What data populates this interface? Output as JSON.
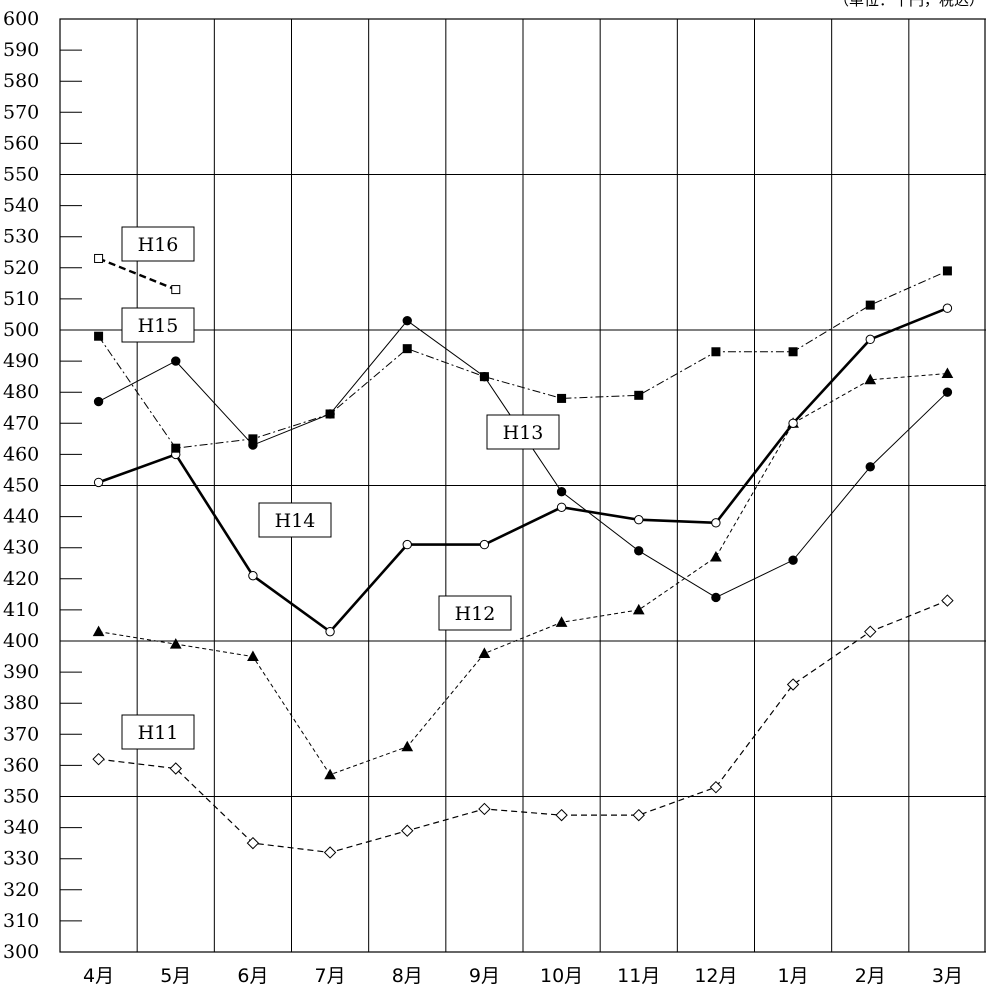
{
  "chart_data": {
    "type": "line",
    "unit_note": "（単位：千円，税込）",
    "categories": [
      "4月",
      "5月",
      "6月",
      "7月",
      "8月",
      "9月",
      "10月",
      "11月",
      "12月",
      "1月",
      "2月",
      "3月"
    ],
    "ylim": [
      300,
      600
    ],
    "ytick_step": 10,
    "grid": true,
    "series": [
      {
        "name": "H16",
        "values": [
          523,
          513,
          null,
          null,
          null,
          null,
          null,
          null,
          null,
          null,
          null,
          null
        ],
        "marker": "square-open",
        "line": "bold-dashed"
      },
      {
        "name": "H15",
        "values": [
          498,
          462,
          465,
          473,
          494,
          485,
          478,
          479,
          493,
          493,
          508,
          519
        ],
        "marker": "square-filled",
        "line": "dash-dot"
      },
      {
        "name": "H14",
        "values": [
          451,
          460,
          421,
          403,
          431,
          431,
          443,
          439,
          438,
          470,
          497,
          507
        ],
        "marker": "circle-open",
        "line": "bold-solid"
      },
      {
        "name": "H13",
        "values": [
          477,
          490,
          463,
          473,
          503,
          485,
          448,
          429,
          414,
          426,
          456,
          480
        ],
        "marker": "circle-filled",
        "line": "thin-solid"
      },
      {
        "name": "H12",
        "values": [
          403,
          399,
          395,
          357,
          366,
          396,
          406,
          410,
          427,
          470,
          484,
          486
        ],
        "marker": "triangle-filled",
        "line": "short-dashed"
      },
      {
        "name": "H11",
        "values": [
          362,
          359,
          335,
          332,
          339,
          346,
          344,
          344,
          353,
          386,
          403,
          413
        ],
        "marker": "diamond-open",
        "line": "dashed"
      }
    ]
  }
}
